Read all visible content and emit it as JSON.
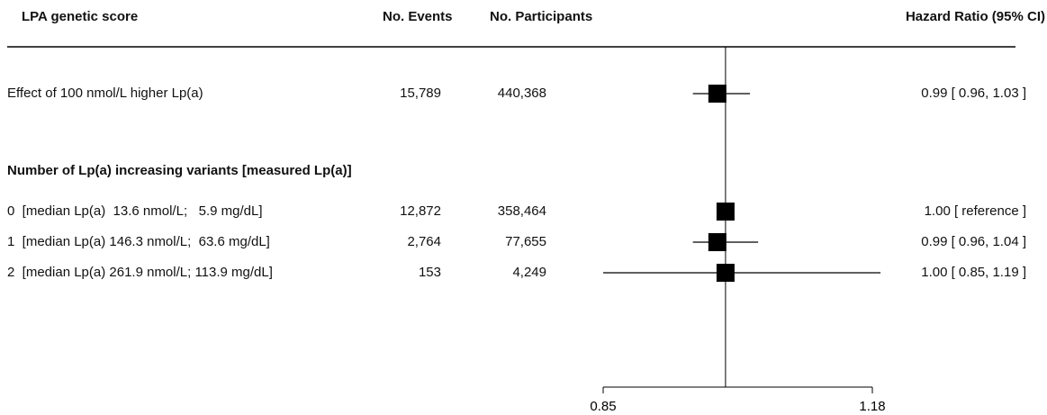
{
  "headers": {
    "score": "LPA genetic score",
    "events": "No. Events",
    "participants": "No. Participants",
    "hr": "Hazard Ratio (95% CI)"
  },
  "section_label": "Number of Lp(a) increasing variants [measured Lp(a)]",
  "rows": [
    {
      "label": "Effect of 100 nmol/L higher Lp(a)",
      "events": "15,789",
      "participants": "440,368",
      "hr_text": "0.99 [ 0.96, 1.03 ]"
    },
    {
      "label": "0  [median Lp(a)  13.6 nmol/L;   5.9 mg/dL]",
      "events": "12,872",
      "participants": "358,464",
      "hr_text": "1.00 [ reference ]"
    },
    {
      "label": "1  [median Lp(a) 146.3 nmol/L;  63.6 mg/dL]",
      "events": "2,764",
      "participants": "77,655",
      "hr_text": "0.99 [ 0.96, 1.04 ]"
    },
    {
      "label": "2  [median Lp(a) 261.9 nmol/L; 113.9 mg/dL]",
      "events": "153",
      "participants": "4,249",
      "hr_text": "1.00 [ 0.85, 1.19 ]"
    }
  ],
  "chart_data": {
    "type": "forest",
    "x_ticks": [
      "0.85",
      "1.18"
    ],
    "xlim": [
      0.85,
      1.18
    ],
    "reference_line": 1.0,
    "points": [
      {
        "hr": 0.99,
        "lo": 0.96,
        "hi": 1.03
      },
      {
        "hr": 1.0,
        "lo": null,
        "hi": null
      },
      {
        "hr": 0.99,
        "lo": 0.96,
        "hi": 1.04
      },
      {
        "hr": 1.0,
        "lo": 0.85,
        "hi": 1.19
      }
    ],
    "colors": {
      "marker": "#000000",
      "line": "#000000"
    }
  }
}
